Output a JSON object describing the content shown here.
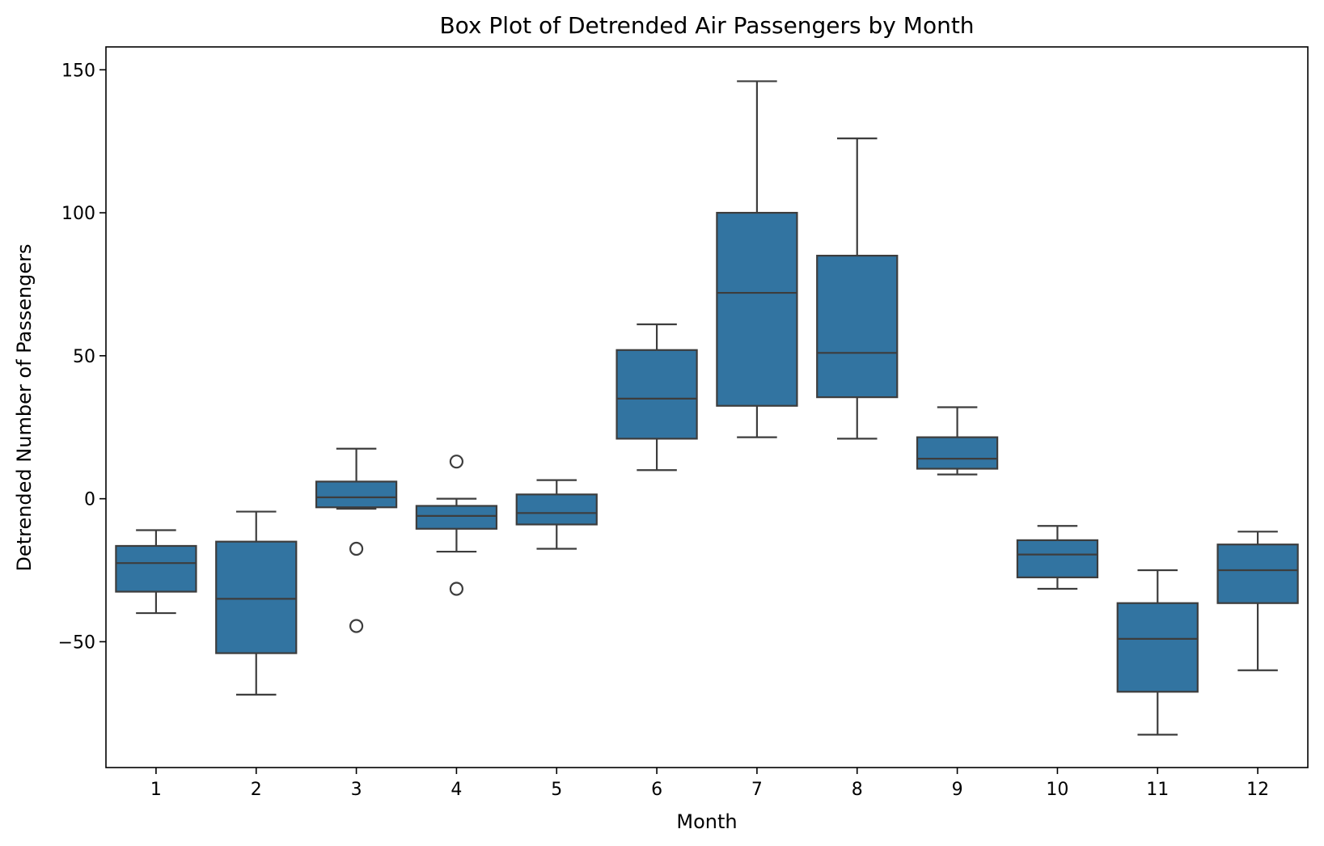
{
  "chart_data": {
    "type": "box",
    "title": "Box Plot of Detrended Air Passengers by Month",
    "xlabel": "Month",
    "ylabel": "Detrended Number of Passengers",
    "ylim": [
      -94,
      158
    ],
    "yticks": [
      -50,
      0,
      50,
      100,
      150
    ],
    "ytick_labels": [
      "−50",
      "0",
      "50",
      "100",
      "150"
    ],
    "grid": false,
    "box_color": "#3274a1",
    "line_color": "#3d3d3d",
    "categories": [
      "1",
      "2",
      "3",
      "4",
      "5",
      "6",
      "7",
      "8",
      "9",
      "10",
      "11",
      "12"
    ],
    "boxes": [
      {
        "month": "1",
        "whisker_low": -40.0,
        "q1": -32.5,
        "median": -22.5,
        "q3": -16.5,
        "whisker_high": -11.0,
        "outliers": []
      },
      {
        "month": "2",
        "whisker_low": -68.5,
        "q1": -54.0,
        "median": -35.0,
        "q3": -15.0,
        "whisker_high": -4.5,
        "outliers": []
      },
      {
        "month": "3",
        "whisker_low": -3.5,
        "q1": -3.0,
        "median": 0.5,
        "q3": 6.0,
        "whisker_high": 17.5,
        "outliers": [
          -17.5,
          -44.5
        ]
      },
      {
        "month": "4",
        "whisker_low": -18.5,
        "q1": -10.5,
        "median": -6.0,
        "q3": -2.5,
        "whisker_high": 0.0,
        "outliers": [
          13.0,
          -31.5
        ]
      },
      {
        "month": "5",
        "whisker_low": -17.5,
        "q1": -9.0,
        "median": -5.0,
        "q3": 1.5,
        "whisker_high": 6.5,
        "outliers": []
      },
      {
        "month": "6",
        "whisker_low": 10.0,
        "q1": 21.0,
        "median": 35.0,
        "q3": 52.0,
        "whisker_high": 61.0,
        "outliers": []
      },
      {
        "month": "7",
        "whisker_low": 21.5,
        "q1": 32.5,
        "median": 72.0,
        "q3": 100.0,
        "whisker_high": 146.0,
        "outliers": []
      },
      {
        "month": "8",
        "whisker_low": 21.0,
        "q1": 35.5,
        "median": 51.0,
        "q3": 85.0,
        "whisker_high": 126.0,
        "outliers": []
      },
      {
        "month": "9",
        "whisker_low": 8.5,
        "q1": 10.5,
        "median": 14.0,
        "q3": 21.5,
        "whisker_high": 32.0,
        "outliers": []
      },
      {
        "month": "10",
        "whisker_low": -31.5,
        "q1": -27.5,
        "median": -19.5,
        "q3": -14.5,
        "whisker_high": -9.5,
        "outliers": []
      },
      {
        "month": "11",
        "whisker_low": -82.5,
        "q1": -67.5,
        "median": -49.0,
        "q3": -36.5,
        "whisker_high": -25.0,
        "outliers": []
      },
      {
        "month": "12",
        "whisker_low": -60.0,
        "q1": -36.5,
        "median": -25.0,
        "q3": -16.0,
        "whisker_high": -11.5,
        "outliers": []
      }
    ]
  }
}
